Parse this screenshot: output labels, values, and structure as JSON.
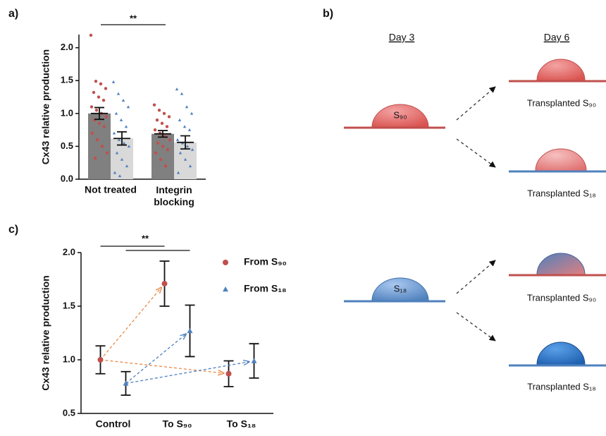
{
  "panel_labels": [
    "a)",
    "b)",
    "c)"
  ],
  "chart_data": [
    {
      "type": "bar",
      "ylabel": "Cx43 relative production",
      "categories": [
        "Not treated",
        "Integrin\nblocking"
      ],
      "ylim": [
        0,
        2.2
      ],
      "yticks": [
        {
          "value": 0,
          "label": "0.0"
        },
        0.5,
        {
          "value": 1,
          "label": "1.0"
        },
        1.5,
        {
          "value": 2,
          "label": "2.0"
        }
      ],
      "annotation": "**",
      "series": [
        {
          "color": "#808080",
          "point_color": "#c0504d",
          "marker": "circle",
          "values": [
            1.0,
            0.69
          ],
          "errors": [
            0.09,
            0.05
          ],
          "points": [
            [
              2.19,
              1.49,
              1.45,
              1.38,
              1.32,
              1.25,
              1.2,
              1.1,
              1.05,
              1.0,
              0.95,
              0.9,
              0.85,
              0.8,
              0.7,
              0.6,
              0.5,
              0.4,
              0.32
            ],
            [
              1.13,
              1.05,
              1.0,
              0.95,
              0.9,
              0.85,
              0.8,
              0.75,
              0.7,
              0.65,
              0.6,
              0.55,
              0.5,
              0.45,
              0.4,
              0.3,
              0.2
            ]
          ]
        },
        {
          "color": "#d9d9d9",
          "point_color": "#4f81bd",
          "marker": "triangle",
          "values": [
            0.62,
            0.56
          ],
          "errors": [
            0.1,
            0.1
          ],
          "points": [
            [
              1.48,
              1.3,
              1.2,
              1.1,
              1.0,
              0.9,
              0.8,
              0.7,
              0.6,
              0.55,
              0.5,
              0.4,
              0.3,
              0.2,
              0.1,
              0.05
            ],
            [
              1.37,
              1.3,
              1.1,
              1.0,
              0.9,
              0.8,
              0.75,
              0.6,
              0.55,
              0.5,
              0.45,
              0.4,
              0.3,
              0.2,
              0.1
            ]
          ]
        }
      ]
    },
    {
      "type": "point",
      "ylabel": "Cx43 relative production",
      "categories": [
        "Control",
        "To S₉₀",
        "To S₁₈"
      ],
      "ylim": [
        0.5,
        2.0
      ],
      "yticks": [
        0.5,
        {
          "value": 1,
          "label": "1.0"
        },
        1.5,
        {
          "value": 2,
          "label": "2.0"
        }
      ],
      "annotation": "**",
      "series": [
        {
          "name": "From S₉₀",
          "color": "#c0504d",
          "arrow_color": "#e8894a",
          "marker": "circle",
          "values": [
            1.0,
            1.71,
            0.87
          ],
          "errors": [
            0.13,
            0.21,
            0.12
          ]
        },
        {
          "name": "From S₁₈",
          "color": "#4f81bd",
          "arrow_color": "#4f81bd",
          "marker": "triangle",
          "values": [
            0.78,
            1.27,
            0.99
          ],
          "errors": [
            0.11,
            0.24,
            0.16
          ]
        }
      ]
    }
  ],
  "diagram": {
    "day3": "Day 3",
    "day6": "Day 6",
    "drop_top": "S₉₀",
    "drop_bottom": "S₁₈",
    "captions": [
      "Transplanted S₉₀",
      "Transplanted S₁₈",
      "Transplanted S₉₀",
      "Transplanted S₁₈"
    ]
  }
}
